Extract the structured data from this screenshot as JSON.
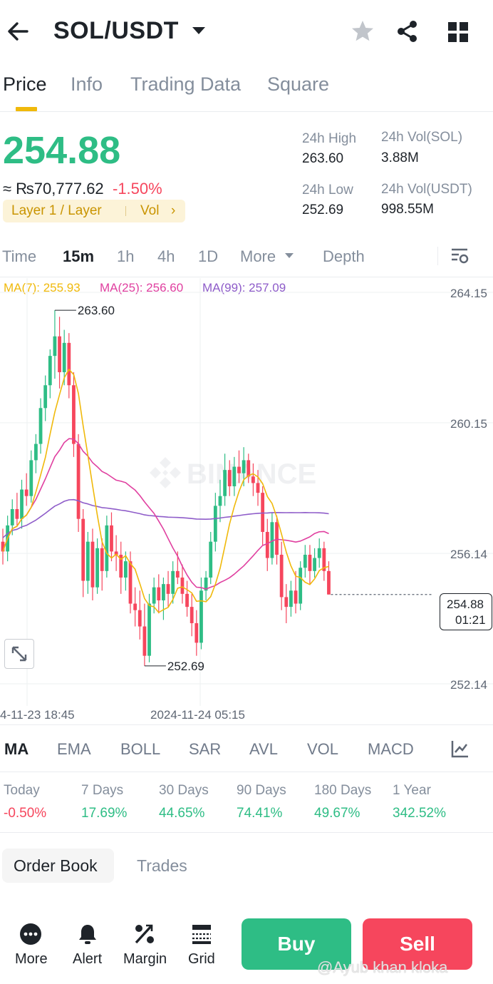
{
  "header": {
    "pair": "SOL/USDT",
    "icons": [
      "back-arrow-icon",
      "caret-down-icon",
      "star-icon",
      "share-icon",
      "grid-icon"
    ]
  },
  "tabs": [
    {
      "label": "Price",
      "active": true
    },
    {
      "label": "Info"
    },
    {
      "label": "Trading Data"
    },
    {
      "label": "Square"
    }
  ],
  "ticker": {
    "price": "254.88",
    "fiat": "≈ ₨70,777.62",
    "change": "-1.50%",
    "tag_category": "Layer 1 / Layer",
    "tag_vol": "Vol",
    "tag_arrow": "›",
    "high_label": "24h High",
    "high_value": "263.60",
    "low_label": "24h Low",
    "low_value": "252.69",
    "vol_sol_label": "24h Vol(SOL)",
    "vol_sol_value": "3.88M",
    "vol_usdt_label": "24h Vol(USDT)",
    "vol_usdt_value": "998.55M"
  },
  "intervals": {
    "time": "Time",
    "m15": "15m",
    "h1": "1h",
    "h4": "4h",
    "d1": "1D",
    "more": "More",
    "depth": "Depth"
  },
  "ma_legend": {
    "ma7": "MA(7): 255.93",
    "ma25": "MA(25): 256.60",
    "ma99": "MA(99): 257.09"
  },
  "chart_labels": {
    "high_marker": "263.60",
    "low_marker": "252.69",
    "current_price": "254.88",
    "countdown": "01:21",
    "watermark": "BINANCE",
    "time_left": "4-11-23 18:45",
    "time_mid": "2024-11-24 05:15"
  },
  "colors": {
    "up": "#2ebd85",
    "down": "#f6465d",
    "ma7": "#f0b90b",
    "ma25": "#e040a0",
    "ma99": "#8e5cc9",
    "accent": "#f0b90b"
  },
  "chart_data": {
    "type": "candlestick",
    "interval": "15m",
    "y_ticks": [
      "264.15",
      "260.15",
      "256.14",
      "252.14"
    ],
    "x_ticks": [
      "4-11-23 18:45",
      "2024-11-24 05:15"
    ],
    "ylim": [
      252.14,
      264.15
    ],
    "series": [
      {
        "name": "MA(7)",
        "last": 255.93
      },
      {
        "name": "MA(25)",
        "last": 256.6
      },
      {
        "name": "MA(99)",
        "last": 257.09
      }
    ],
    "candles": [
      [
        256.5,
        256.9,
        255.8,
        256.2
      ],
      [
        256.2,
        257.3,
        255.9,
        257.0
      ],
      [
        257.0,
        257.8,
        256.7,
        257.5
      ],
      [
        257.5,
        258.0,
        257.0,
        257.2
      ],
      [
        257.2,
        258.4,
        256.9,
        258.1
      ],
      [
        258.1,
        258.6,
        257.6,
        257.9
      ],
      [
        257.9,
        259.3,
        257.7,
        259.0
      ],
      [
        259.0,
        259.8,
        258.6,
        259.5
      ],
      [
        259.5,
        260.9,
        259.2,
        260.6
      ],
      [
        260.6,
        261.6,
        260.2,
        261.3
      ],
      [
        261.3,
        262.4,
        260.9,
        262.2
      ],
      [
        262.2,
        263.6,
        261.5,
        262.8
      ],
      [
        262.8,
        263.4,
        261.2,
        261.7
      ],
      [
        261.7,
        263.0,
        261.3,
        262.6
      ],
      [
        262.6,
        262.9,
        260.9,
        261.3
      ],
      [
        261.3,
        261.7,
        259.1,
        259.5
      ],
      [
        259.5,
        259.8,
        256.8,
        257.2
      ],
      [
        257.2,
        257.5,
        254.8,
        255.3
      ],
      [
        255.3,
        256.8,
        254.9,
        256.5
      ],
      [
        256.5,
        256.9,
        254.7,
        255.1
      ],
      [
        255.1,
        256.6,
        254.9,
        256.3
      ],
      [
        256.3,
        256.6,
        255.0,
        255.6
      ],
      [
        255.6,
        257.3,
        255.4,
        257.0
      ],
      [
        257.0,
        257.4,
        255.9,
        256.2
      ],
      [
        256.2,
        256.7,
        255.6,
        256.1
      ],
      [
        256.1,
        256.5,
        254.9,
        255.4
      ],
      [
        255.4,
        256.2,
        255.0,
        255.9
      ],
      [
        255.9,
        256.2,
        254.3,
        254.6
      ],
      [
        254.6,
        255.1,
        253.9,
        254.4
      ],
      [
        254.4,
        255.0,
        253.5,
        253.9
      ],
      [
        253.9,
        254.6,
        252.69,
        253.0
      ],
      [
        253.0,
        254.9,
        252.8,
        254.6
      ],
      [
        254.6,
        255.4,
        254.3,
        255.1
      ],
      [
        255.1,
        255.5,
        254.3,
        254.7
      ],
      [
        254.7,
        255.4,
        254.1,
        255.2
      ],
      [
        255.2,
        255.6,
        254.5,
        254.9
      ],
      [
        254.9,
        255.9,
        254.6,
        255.6
      ],
      [
        255.6,
        256.2,
        255.2,
        255.4
      ],
      [
        255.4,
        255.8,
        254.6,
        254.9
      ],
      [
        254.9,
        255.3,
        254.2,
        254.5
      ],
      [
        254.5,
        254.9,
        253.6,
        254.0
      ],
      [
        254.0,
        254.4,
        253.0,
        253.4
      ],
      [
        253.4,
        255.4,
        253.2,
        255.0
      ],
      [
        255.0,
        255.6,
        254.7,
        255.4
      ],
      [
        255.4,
        256.8,
        255.2,
        256.5
      ],
      [
        256.5,
        258.0,
        256.2,
        257.6
      ],
      [
        257.6,
        258.4,
        257.1,
        257.9
      ],
      [
        257.9,
        259.2,
        257.6,
        258.7
      ],
      [
        258.7,
        259.0,
        257.9,
        258.2
      ],
      [
        258.2,
        259.1,
        257.9,
        258.8
      ],
      [
        258.8,
        259.3,
        258.3,
        258.6
      ],
      [
        258.6,
        259.4,
        258.2,
        259.0
      ],
      [
        259.0,
        259.2,
        258.3,
        258.5
      ],
      [
        258.5,
        258.9,
        257.9,
        258.3
      ],
      [
        258.3,
        258.7,
        257.6,
        258.0
      ],
      [
        258.0,
        258.2,
        256.4,
        256.8
      ],
      [
        256.8,
        257.2,
        255.6,
        256.0
      ],
      [
        256.0,
        257.4,
        255.8,
        257.1
      ],
      [
        257.1,
        257.3,
        255.8,
        256.1
      ],
      [
        256.1,
        256.5,
        254.4,
        254.8
      ],
      [
        254.8,
        255.2,
        254.0,
        254.5
      ],
      [
        254.5,
        255.3,
        254.2,
        255.0
      ],
      [
        255.0,
        255.6,
        254.3,
        254.6
      ],
      [
        254.6,
        255.9,
        254.4,
        255.7
      ],
      [
        255.7,
        256.4,
        255.4,
        256.1
      ],
      [
        256.1,
        256.4,
        255.2,
        255.6
      ],
      [
        255.6,
        256.3,
        255.4,
        256.0
      ],
      [
        256.0,
        256.6,
        255.7,
        256.3
      ],
      [
        256.3,
        256.5,
        255.3,
        255.6
      ],
      [
        255.6,
        255.9,
        254.88,
        254.88
      ]
    ]
  },
  "indicators": [
    "MA",
    "EMA",
    "BOLL",
    "SAR",
    "AVL",
    "VOL",
    "MACD"
  ],
  "performance": [
    {
      "label": "Today",
      "value": "-0.50%",
      "neg": true
    },
    {
      "label": "7 Days",
      "value": "17.69%"
    },
    {
      "label": "30 Days",
      "value": "44.65%"
    },
    {
      "label": "90 Days",
      "value": "74.41%"
    },
    {
      "label": "180 Days",
      "value": "49.67%"
    },
    {
      "label": "1 Year",
      "value": "342.52%"
    }
  ],
  "book": {
    "order_book": "Order Book",
    "trades": "Trades"
  },
  "bottom": {
    "more": "More",
    "alert": "Alert",
    "margin": "Margin",
    "grid": "Grid",
    "buy": "Buy",
    "sell": "Sell",
    "watermark": "@Ayub khan kloka"
  }
}
